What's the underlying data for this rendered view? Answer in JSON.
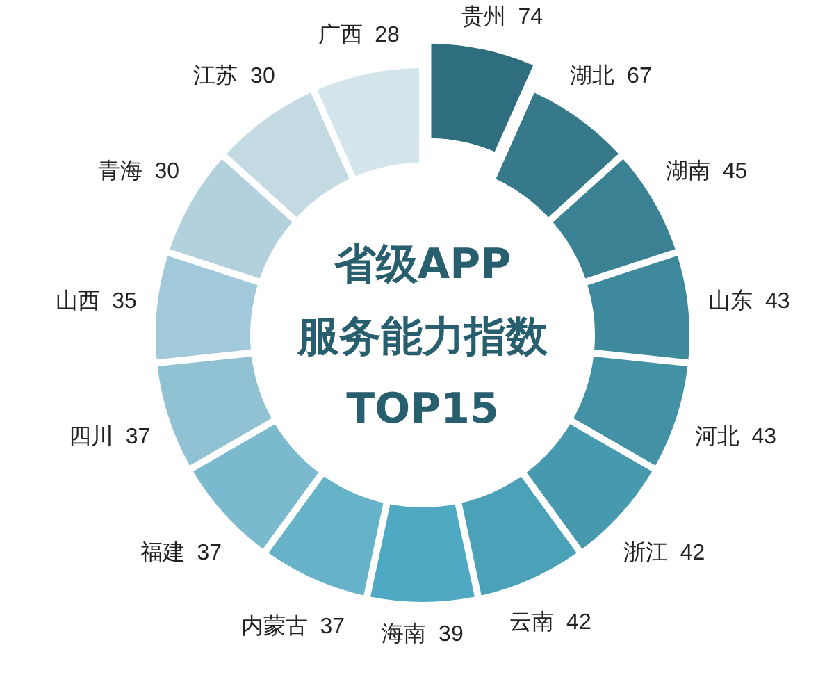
{
  "chart_data": {
    "type": "other",
    "title": "省级APP 服务能力指数 TOP15",
    "categories": [
      "贵州",
      "湖北",
      "湖南",
      "山东",
      "河北",
      "浙江",
      "云南",
      "海南",
      "内蒙古",
      "福建",
      "四川",
      "山西",
      "青海",
      "江苏",
      "广西"
    ],
    "values": [
      74,
      67,
      45,
      43,
      43,
      42,
      42,
      39,
      37,
      37,
      37,
      35,
      30,
      30,
      28
    ],
    "colors": [
      "#2f6e7f",
      "#35798b",
      "#3a8194",
      "#3e899c",
      "#4391a5",
      "#4799ae",
      "#4ba1b8",
      "#50a9c2",
      "#66b2c9",
      "#7bbace",
      "#90c2d4",
      "#a2c9d9",
      "#b3d1dd",
      "#c3dae3",
      "#d4e4eb"
    ],
    "data_labels": true
  }
}
